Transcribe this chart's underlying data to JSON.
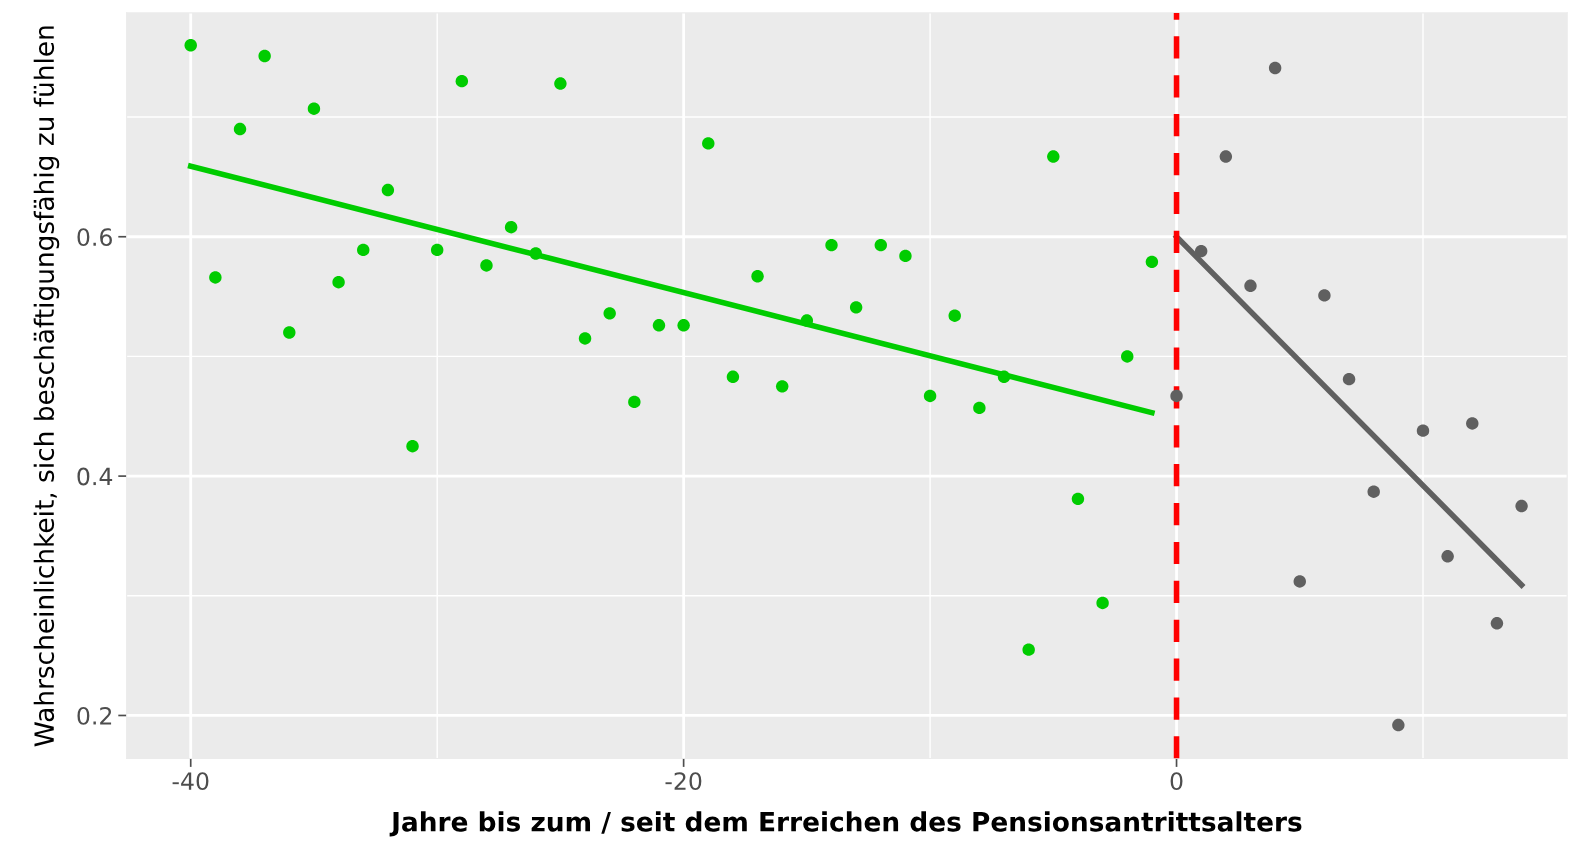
{
  "chart_data": {
    "type": "scatter",
    "xlabel": "Jahre bis zum / seit dem Erreichen des Pensionsantrittsalters",
    "ylabel": "Wahrscheinlichkeit, sich beschäftigungsfähig zu fühlen",
    "xlim": [
      -42.6,
      15.85
    ],
    "ylim": [
      0.164,
      0.787
    ],
    "xticks": [
      -40,
      -20,
      0
    ],
    "yticks": [
      0.2,
      0.4,
      0.6
    ],
    "grid": true,
    "series": [
      {
        "marker": "circle",
        "color": "#00cc00",
        "x": [
          -40,
          -39,
          -38,
          -37,
          -36,
          -35,
          -34,
          -33,
          -32,
          -31,
          -30,
          -29,
          -28,
          -27,
          -26,
          -25,
          -24,
          -23,
          -22,
          -21,
          -20,
          -19,
          -18,
          -17,
          -16,
          -15,
          -14,
          -13,
          -12,
          -11,
          -10,
          -9,
          -8,
          -7,
          -6,
          -5,
          -4,
          -3,
          -2,
          -1
        ],
        "values": [
          0.76,
          0.566,
          0.69,
          0.751,
          0.52,
          0.707,
          0.562,
          0.589,
          0.639,
          0.425,
          0.589,
          0.73,
          0.576,
          0.608,
          0.586,
          0.728,
          0.515,
          0.536,
          0.462,
          0.526,
          0.526,
          0.678,
          0.483,
          0.567,
          0.475,
          0.53,
          0.593,
          0.541,
          0.593,
          0.584,
          0.467,
          0.534,
          0.457,
          0.483,
          0.255,
          0.667,
          0.381,
          0.294,
          0.5,
          0.579
        ]
      },
      {
        "marker": "circle",
        "color": "#606060",
        "x": [
          0,
          1,
          2,
          3,
          4,
          5,
          6,
          7,
          8,
          9,
          10,
          11,
          12,
          13,
          14
        ],
        "values": [
          0.467,
          0.588,
          0.667,
          0.559,
          0.741,
          0.312,
          0.551,
          0.481,
          0.387,
          0.192,
          0.438,
          0.333,
          0.444,
          0.277,
          0.375
        ]
      },
      {
        "type": "line",
        "color": "#00cc00",
        "x": [
          -40,
          -1
        ],
        "values": [
          0.659,
          0.453
        ]
      },
      {
        "type": "line",
        "color": "#606060",
        "x": [
          0,
          14
        ],
        "values": [
          0.6,
          0.309
        ]
      }
    ],
    "ref_lines": [
      {
        "axis": "x",
        "value": 0,
        "label": null,
        "color": "#ff0000",
        "line_style": "dashed"
      }
    ]
  }
}
